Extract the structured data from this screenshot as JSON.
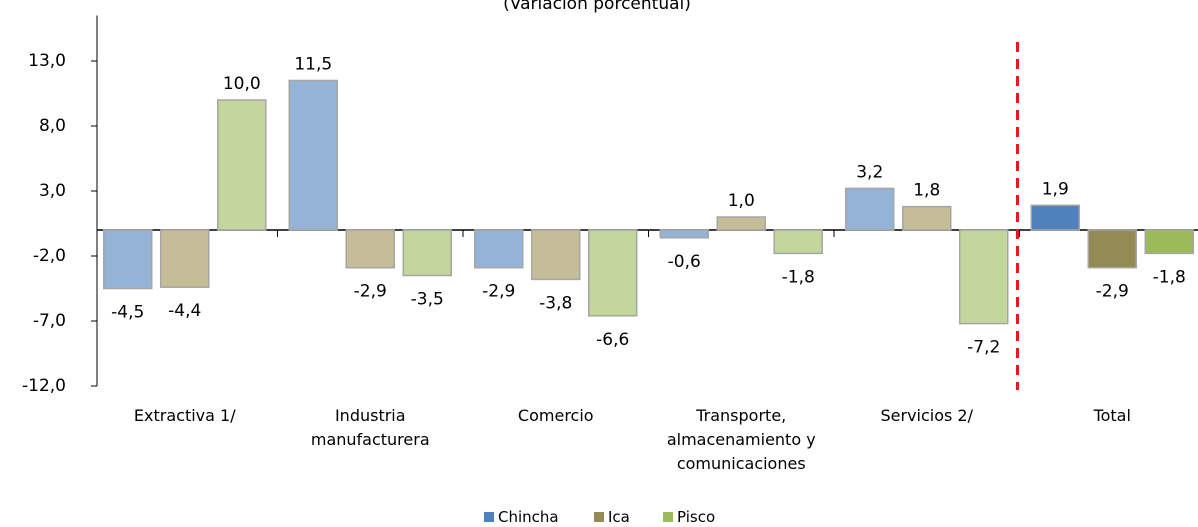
{
  "chart_data": {
    "type": "bar",
    "title": "(Variación porcentual)",
    "categories": [
      "Extractiva 1/",
      "Industria manufacturera",
      "Comercio",
      "Transporte, almacenamiento y comunicaciones",
      "Servicios 2/",
      "Total"
    ],
    "series": [
      {
        "name": "Chincha",
        "color": "#4f81bd",
        "light_color": "#95b3d7",
        "values": [
          -4.5,
          11.5,
          -2.9,
          -0.6,
          3.2,
          1.9
        ],
        "value_labels": [
          "-4,5",
          "11,5",
          "-2,9",
          "-0,6",
          "3,2",
          "1,9"
        ]
      },
      {
        "name": "Ica",
        "color": "#948a54",
        "light_color": "#c4bd97",
        "values": [
          -4.4,
          -2.9,
          -3.8,
          1.0,
          1.8,
          -2.9
        ],
        "value_labels": [
          "-4,4",
          "-2,9",
          "-3,8",
          "1,0",
          "1,8",
          "-2,9"
        ]
      },
      {
        "name": "Pisco",
        "color": "#9bbb59",
        "light_color": "#c3d69b",
        "values": [
          10.0,
          -3.5,
          -6.6,
          -1.8,
          -7.2,
          -1.8
        ],
        "value_labels": [
          "10,0",
          "-3,5",
          "-6,6",
          "-1,8",
          "-7,2",
          "-1,8"
        ]
      }
    ],
    "ylim": [
      -12,
      16.5
    ],
    "yticks": [
      {
        "value": -12,
        "label": "-12,0"
      },
      {
        "value": -7,
        "label": "-7,0"
      },
      {
        "value": -2,
        "label": "-2,0"
      },
      {
        "value": 3,
        "label": "3,0"
      },
      {
        "value": 8,
        "label": "8,0"
      },
      {
        "value": 13,
        "label": "13,0"
      }
    ],
    "legend": "bottom"
  }
}
